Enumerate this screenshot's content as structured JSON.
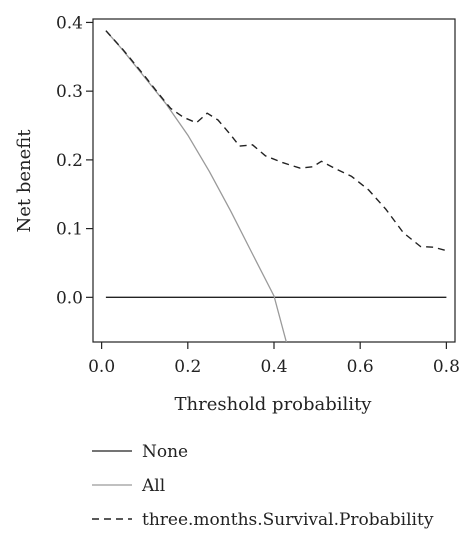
{
  "chart_data": {
    "type": "line",
    "title": "",
    "xlabel": "Threshold probability",
    "ylabel": "Net benefit",
    "xlim": [
      -0.02,
      0.82
    ],
    "ylim": [
      -0.065,
      0.405
    ],
    "xticks": [
      "0.0",
      "0.2",
      "0.4",
      "0.6",
      "0.8"
    ],
    "xtick_values": [
      0.0,
      0.2,
      0.4,
      0.6,
      0.8
    ],
    "yticks": [
      "0.0",
      "0.1",
      "0.2",
      "0.3",
      "0.4"
    ],
    "ytick_values": [
      0.0,
      0.1,
      0.2,
      0.3,
      0.4
    ],
    "grid": false,
    "legend_position": "bottom-left",
    "series": [
      {
        "name": "None",
        "style": "solid",
        "color": "#222222",
        "x": [
          0.01,
          0.8
        ],
        "y": [
          0.0,
          0.0
        ]
      },
      {
        "name": "All",
        "style": "solid",
        "color": "#9a9a9a",
        "x": [
          0.01,
          0.05,
          0.1,
          0.15,
          0.2,
          0.25,
          0.3,
          0.35,
          0.4,
          0.43
        ],
        "y": [
          0.388,
          0.359,
          0.32,
          0.281,
          0.236,
          0.183,
          0.125,
          0.063,
          0.002,
          -0.068
        ]
      },
      {
        "name": "three.months.Survival.Probability",
        "style": "dashed",
        "color": "#222222",
        "x": [
          0.01,
          0.05,
          0.1,
          0.13,
          0.16,
          0.19,
          0.22,
          0.245,
          0.27,
          0.3,
          0.32,
          0.35,
          0.38,
          0.42,
          0.46,
          0.49,
          0.51,
          0.54,
          0.58,
          0.62,
          0.66,
          0.7,
          0.74,
          0.77,
          0.8
        ],
        "y": [
          0.388,
          0.36,
          0.322,
          0.298,
          0.275,
          0.262,
          0.254,
          0.268,
          0.258,
          0.236,
          0.22,
          0.222,
          0.206,
          0.196,
          0.188,
          0.19,
          0.198,
          0.188,
          0.176,
          0.156,
          0.128,
          0.094,
          0.074,
          0.073,
          0.068
        ]
      }
    ]
  }
}
